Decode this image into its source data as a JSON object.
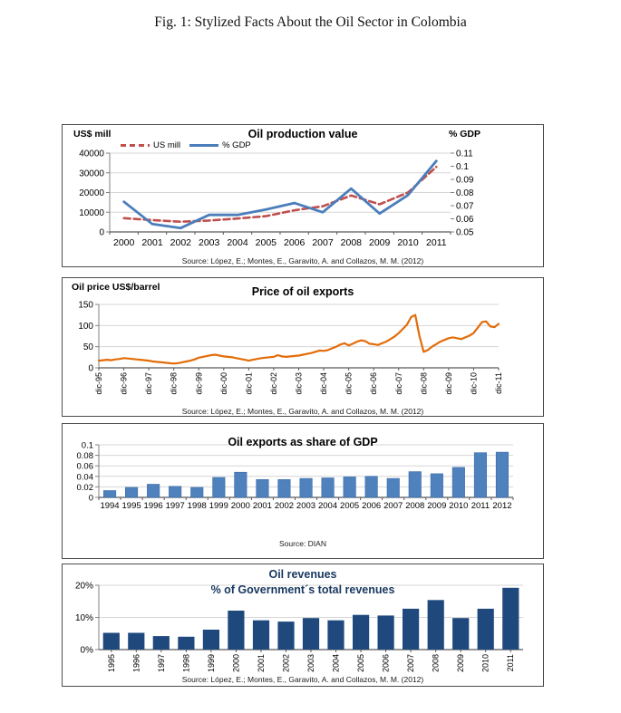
{
  "figure": {
    "title": "Fig. 1: Stylized Facts About the Oil Sector in Colombia"
  },
  "chart_data": [
    {
      "id": "oil-production-value",
      "type": "line",
      "title": "Oil production value",
      "left_axis_title": "US$ mill",
      "right_axis_title": "% GDP",
      "source": "Source: López, E.; Montes, E., Garavito, A. and Collazos, M. M. (2012)",
      "categories": [
        "2000",
        "2001",
        "2002",
        "2003",
        "2004",
        "2005",
        "2006",
        "2007",
        "2008",
        "2009",
        "2010",
        "2011"
      ],
      "series": [
        {
          "name": "US mill",
          "axis": "left",
          "style": "dashed",
          "color": "#C0504D",
          "values": [
            7000,
            6000,
            5200,
            5800,
            6800,
            8000,
            11000,
            13000,
            18500,
            14000,
            20000,
            33000
          ]
        },
        {
          "name": "% GDP",
          "axis": "right",
          "style": "solid",
          "color": "#4A7EBB",
          "values": [
            0.073,
            0.056,
            0.053,
            0.063,
            0.063,
            0.067,
            0.072,
            0.065,
            0.083,
            0.064,
            0.078,
            0.104
          ]
        }
      ],
      "left_axis": {
        "lim": [
          0,
          40000
        ],
        "ticks": [
          0,
          10000,
          20000,
          30000,
          40000
        ],
        "labels": [
          "0",
          "10000",
          "20000",
          "30000",
          "40000"
        ]
      },
      "right_axis": {
        "lim": [
          0.05,
          0.11
        ],
        "ticks": [
          0.05,
          0.06,
          0.07,
          0.08,
          0.09,
          0.1,
          0.11
        ],
        "labels": [
          "0.05",
          "0.06",
          "0.07",
          "0.08",
          "0.09",
          "0.1",
          "0.11"
        ]
      },
      "legend_position": "top-left-inside",
      "grid": true
    },
    {
      "id": "price-of-oil-exports",
      "type": "line",
      "title": "Price of oil exports",
      "left_axis_title": "Oil price US$/barrel",
      "source": "Source: López, E.; Montes, E., Garavito, A. and Collazos, M. M. (2012)",
      "x_tick_labels": [
        "dic-95",
        "dic-96",
        "dic-97",
        "dic-98",
        "dic-99",
        "dic-00",
        "dic-01",
        "dic-02",
        "dic-03",
        "dic-04",
        "dic-05",
        "dic-06",
        "dic-07",
        "dic-08",
        "dic-09",
        "dic-10",
        "dic-11"
      ],
      "series": [
        {
          "name": "Oil price US$/barrel",
          "axis": "left",
          "style": "solid",
          "color": "#E36C09",
          "values": [
            17,
            18,
            19,
            18,
            20,
            21,
            23,
            22,
            21,
            20,
            19,
            18,
            17,
            15,
            14,
            13,
            12,
            11,
            10,
            11,
            13,
            15,
            17,
            20,
            24,
            26,
            28,
            30,
            31,
            29,
            27,
            26,
            25,
            23,
            21,
            19,
            17,
            19,
            21,
            23,
            24,
            25,
            26,
            30,
            27,
            26,
            27,
            28,
            29,
            31,
            33,
            35,
            38,
            41,
            40,
            42,
            46,
            50,
            55,
            58,
            53,
            57,
            62,
            65,
            63,
            57,
            56,
            54,
            58,
            62,
            68,
            74,
            82,
            92,
            102,
            120,
            125,
            75,
            38,
            42,
            50,
            56,
            62,
            66,
            70,
            72,
            70,
            68,
            72,
            76,
            82,
            95,
            108,
            110,
            98,
            96,
            104
          ]
        }
      ],
      "left_axis": {
        "lim": [
          0,
          150
        ],
        "ticks": [
          0,
          50,
          100,
          150
        ],
        "labels": [
          "0",
          "50",
          "100",
          "150"
        ]
      },
      "grid": true
    },
    {
      "id": "oil-exports-share-of-gdp",
      "type": "bar",
      "title": "Oil exports as share of GDP",
      "source": "Source: DIAN",
      "color": "#4F81BD",
      "edge_color": "#3A6CA8",
      "categories": [
        "1994",
        "1995",
        "1996",
        "1997",
        "1998",
        "1999",
        "2000",
        "2001",
        "2002",
        "2003",
        "2004",
        "2005",
        "2006",
        "2007",
        "2008",
        "2009",
        "2010",
        "2011",
        "2012"
      ],
      "values": [
        0.013,
        0.019,
        0.025,
        0.021,
        0.019,
        0.038,
        0.048,
        0.034,
        0.034,
        0.036,
        0.037,
        0.039,
        0.04,
        0.036,
        0.049,
        0.045,
        0.057,
        0.085,
        0.086
      ],
      "left_axis": {
        "lim": [
          0,
          0.1
        ],
        "ticks": [
          0,
          0.02,
          0.04,
          0.06,
          0.08,
          0.1
        ],
        "labels": [
          "0",
          "0.02",
          "0.04",
          "0.06",
          "0.08",
          "0.1"
        ]
      },
      "grid": true
    },
    {
      "id": "oil-revenues",
      "type": "bar",
      "title": "Oil revenues",
      "subtitle": "% of Government´s total revenues",
      "title_color": "#17375E",
      "source": "Source: López, E.; Montes, E., Garavito, A. and Collazos, M. M. (2012)",
      "color": "#1F497D",
      "categories": [
        "1995",
        "1996",
        "1997",
        "1998",
        "1999",
        "2000",
        "2001",
        "2002",
        "2003",
        "2004",
        "2005",
        "2006",
        "2007",
        "2008",
        "2009",
        "2010",
        "2011"
      ],
      "values": [
        5.2,
        5.2,
        4.2,
        4.0,
        6.2,
        12.1,
        9.1,
        8.7,
        9.8,
        9.1,
        10.8,
        10.6,
        12.7,
        15.4,
        9.8,
        12.7,
        19.2
      ],
      "values_unit": "%",
      "left_axis": {
        "lim": [
          0,
          20
        ],
        "ticks": [
          0,
          10,
          20
        ],
        "labels": [
          "0%",
          "10%",
          "20%"
        ]
      },
      "grid": true
    }
  ]
}
